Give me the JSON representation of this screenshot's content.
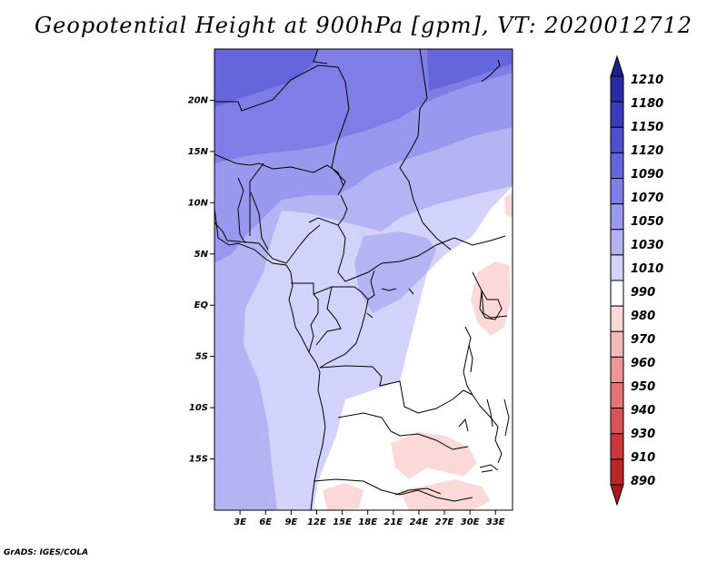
{
  "title": "Geopotential Height at 900hPa [gpm], VT: 2020012712",
  "credit": "GrADS: IGES/COLA",
  "map": {
    "y_ticks": [
      "20N",
      "15N",
      "10N",
      "5N",
      "EQ",
      "5S",
      "10S",
      "15S"
    ],
    "y_tick_lats": [
      20,
      15,
      10,
      5,
      0,
      -5,
      -10,
      -15
    ],
    "x_ticks": [
      "3E",
      "6E",
      "9E",
      "12E",
      "15E",
      "18E",
      "21E",
      "24E",
      "27E",
      "30E",
      "33E"
    ],
    "x_tick_lons": [
      3,
      6,
      9,
      12,
      15,
      18,
      21,
      24,
      27,
      30,
      33
    ],
    "lon_range": [
      0,
      35
    ],
    "lat_range": [
      -20,
      25
    ]
  },
  "colorbar": {
    "levels": [
      "1210",
      "1180",
      "1150",
      "1120",
      "1090",
      "1070",
      "1050",
      "1030",
      "1010",
      "990",
      "980",
      "970",
      "960",
      "950",
      "940",
      "930",
      "910",
      "890"
    ],
    "colors": [
      "#1f1f8f",
      "#2b2ba8",
      "#3b3bbe",
      "#4f4fcf",
      "#6666dc",
      "#7e7ee6",
      "#9898ee",
      "#b4b4f4",
      "#d2d2fa",
      "#ffffff",
      "#fbd9d9",
      "#f6b8b8",
      "#ee9696",
      "#e47474",
      "#d95454",
      "#cc3838",
      "#bb2626",
      "#a41c1c"
    ]
  }
}
